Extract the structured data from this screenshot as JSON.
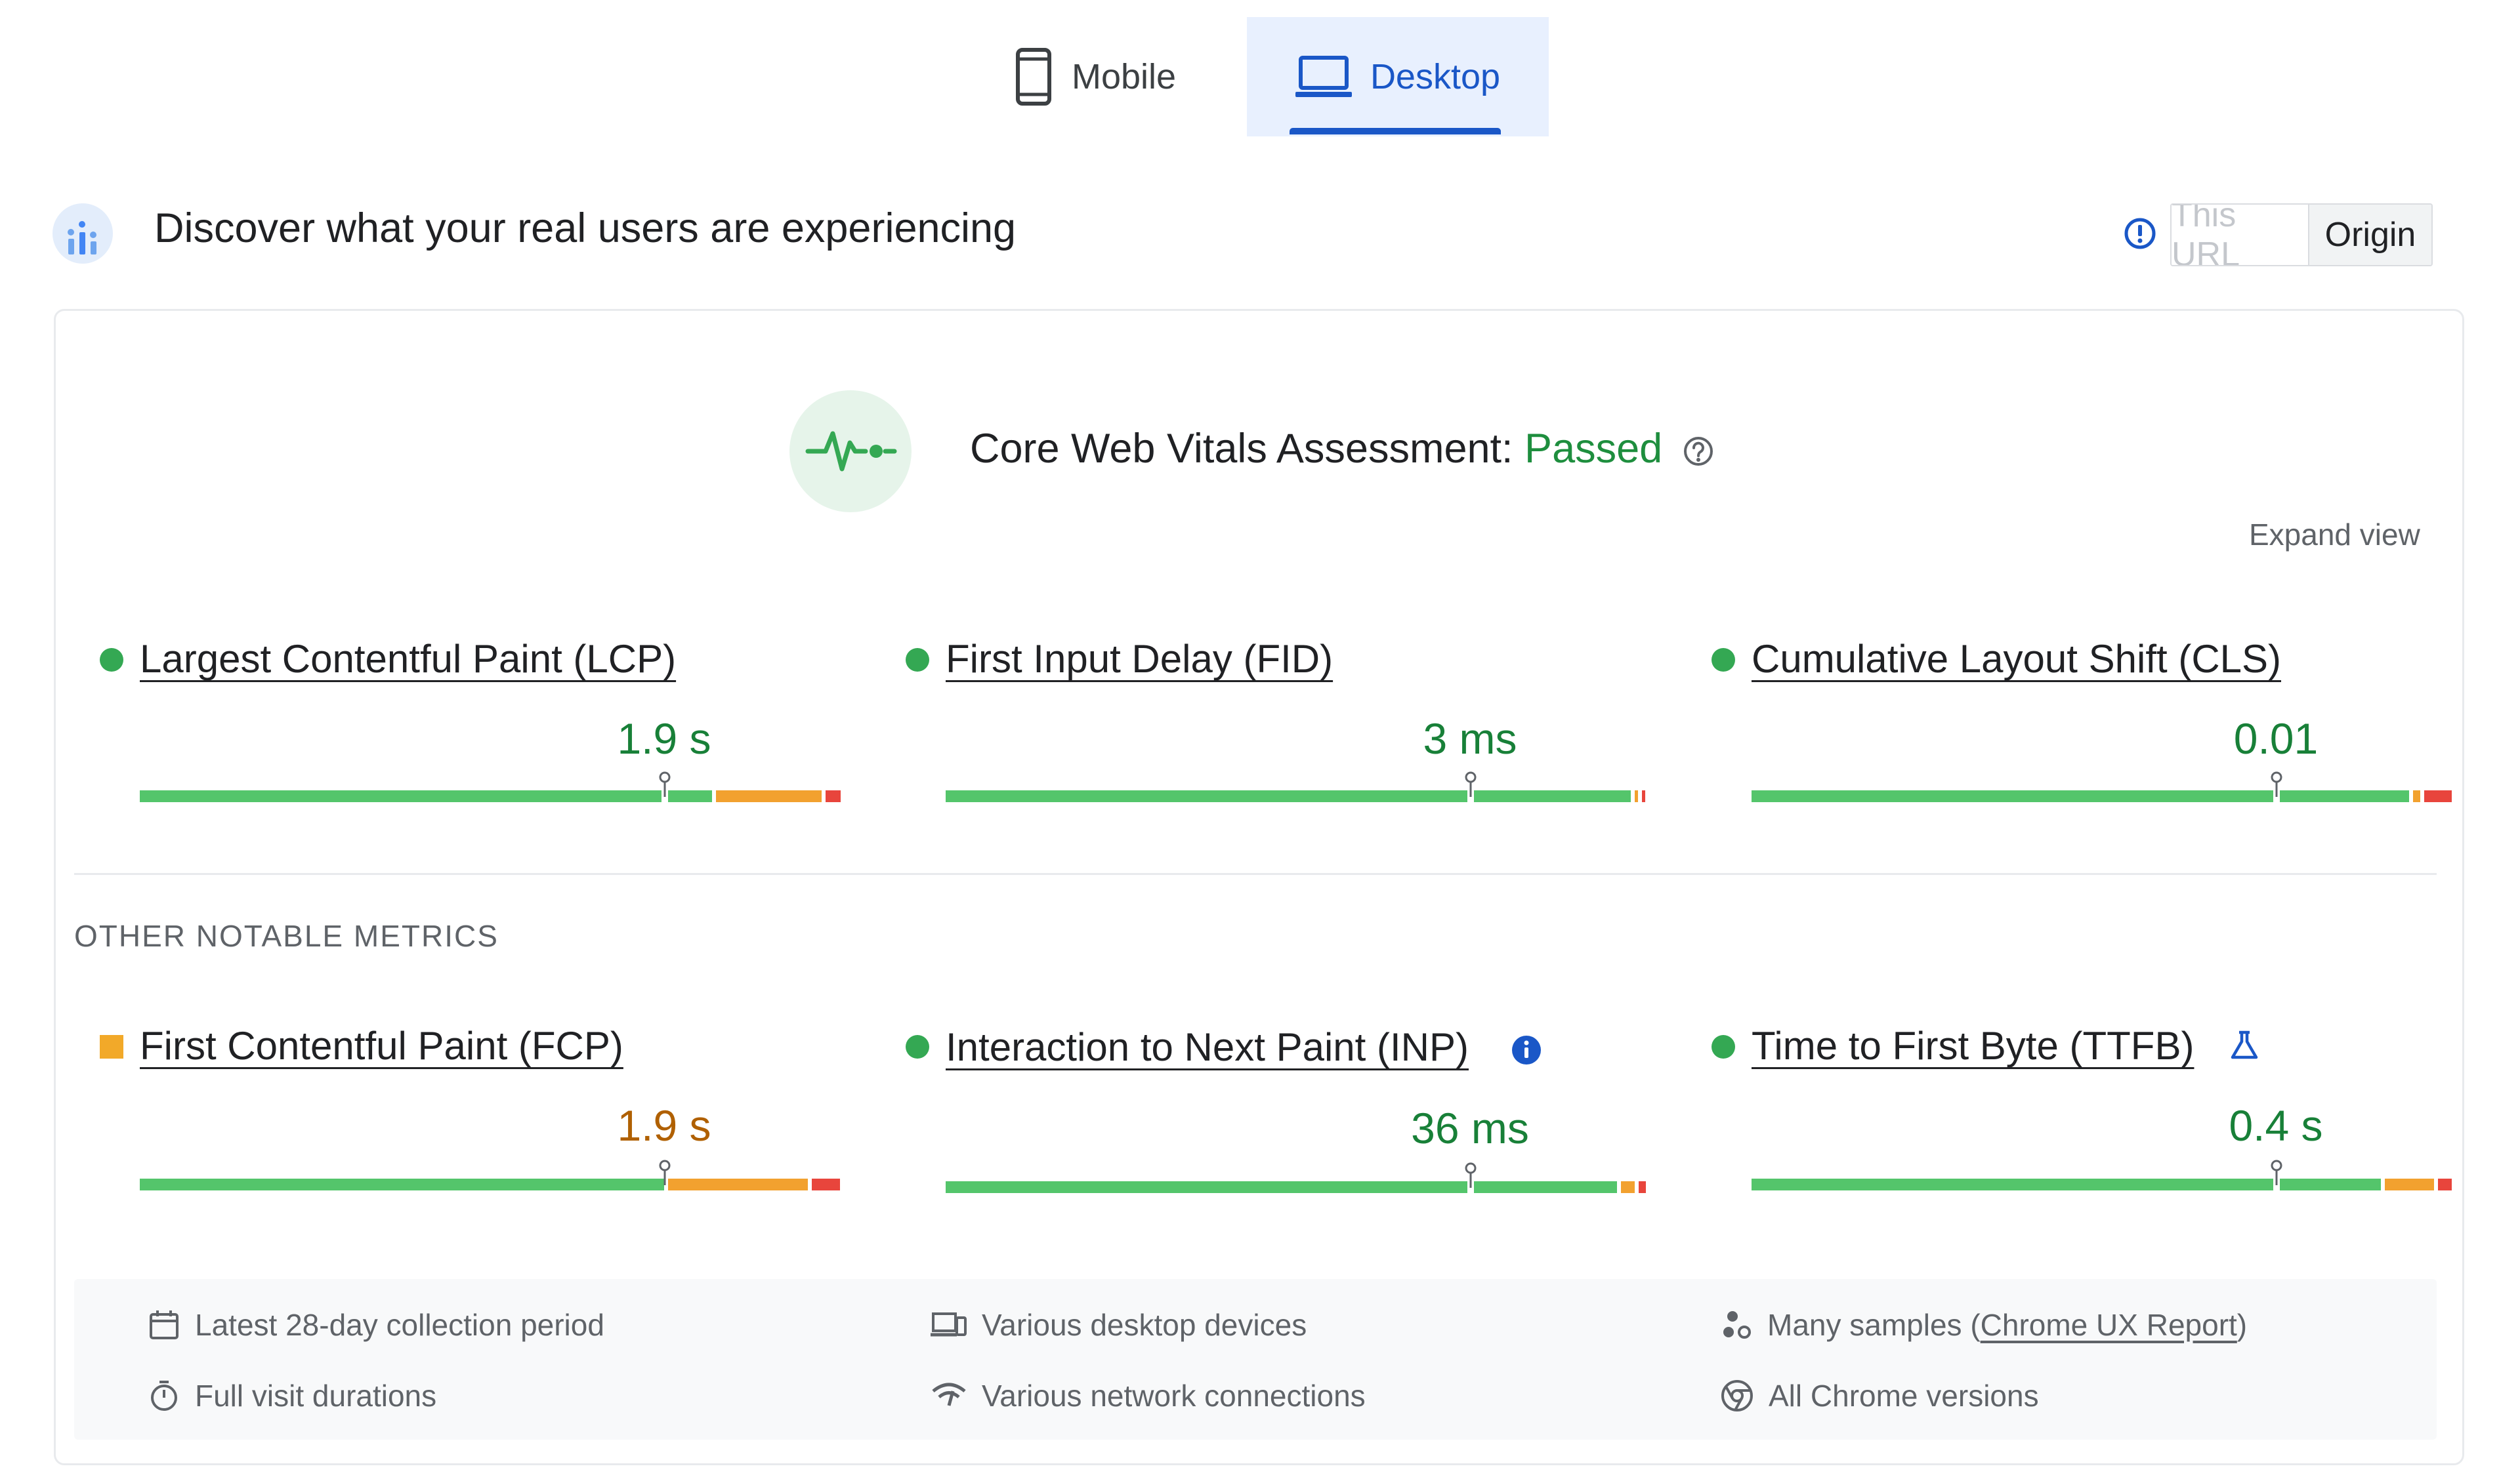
{
  "tabs": {
    "mobile": {
      "label": "Mobile",
      "icon": "smartphone-icon"
    },
    "desktop": {
      "label": "Desktop",
      "icon": "laptop-icon",
      "selected": true
    }
  },
  "header": {
    "title": "Discover what your real users are experiencing",
    "toggle": {
      "this_url": "This URL",
      "origin": "Origin",
      "selected": "Origin"
    }
  },
  "assessment": {
    "label": "Core Web Vitals Assessment:",
    "status": "Passed",
    "expand": "Expand view"
  },
  "core_metrics": [
    {
      "name": "Largest Contentful Paint (LCP)",
      "value": "1.9 s",
      "rating": "good",
      "distribution": {
        "good": 0.76,
        "needs_improvement": 0.14,
        "poor": 0.02
      },
      "marker_fraction": 0.75
    },
    {
      "name": "First Input Delay (FID)",
      "value": "3 ms",
      "rating": "good",
      "distribution": {
        "good": 0.98,
        "needs_improvement": 0.005,
        "poor": 0.005
      },
      "marker_fraction": 0.75
    },
    {
      "name": "Cumulative Layout Shift (CLS)",
      "value": "0.01",
      "rating": "good",
      "distribution": {
        "good": 0.95,
        "needs_improvement": 0.01,
        "poor": 0.04
      },
      "marker_fraction": 0.75
    }
  ],
  "other_heading": "OTHER NOTABLE METRICS",
  "other_metrics": [
    {
      "name": "First Contentful Paint (FCP)",
      "value": "1.9 s",
      "rating": "needs-improvement",
      "distribution": {
        "good": 0.75,
        "needs_improvement": 0.2,
        "poor": 0.04
      },
      "marker_fraction": 0.75
    },
    {
      "name": "Interaction to Next Paint (INP)",
      "value": "36 ms",
      "rating": "good",
      "badge_icon": "info-icon",
      "distribution": {
        "good": 0.96,
        "needs_improvement": 0.02,
        "poor": 0.01
      },
      "marker_fraction": 0.75
    },
    {
      "name": "Time to First Byte (TTFB)",
      "value": "0.4 s",
      "rating": "good",
      "badge_icon": "flask-icon",
      "distribution": {
        "good": 0.9,
        "needs_improvement": 0.07,
        "poor": 0.02
      },
      "marker_fraction": 0.75
    }
  ],
  "footer": {
    "period": "Latest 28-day collection period",
    "devices": "Various desktop devices",
    "samples_prefix": "Many samples (",
    "samples_link": "Chrome UX Report",
    "samples_suffix": ")",
    "durations": "Full visit durations",
    "network": "Various network connections",
    "chrome": "All Chrome versions"
  },
  "colors": {
    "good": "#54c56b",
    "needs_improvement": "#f2a12f",
    "poor": "#e8453c",
    "accent": "#1a57c7"
  }
}
